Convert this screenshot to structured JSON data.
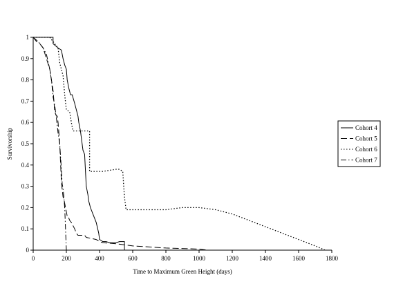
{
  "chart_data": {
    "type": "line",
    "title": "",
    "xlabel": "Time to Maximum Green Height (days)",
    "ylabel": "Survivorship",
    "xlim": [
      0,
      1800
    ],
    "ylim": [
      0,
      1
    ],
    "x_ticks": [
      0,
      200,
      400,
      600,
      800,
      1000,
      1200,
      1400,
      1600,
      1800
    ],
    "y_ticks": [
      0,
      0.1,
      0.2,
      0.3,
      0.4,
      0.5,
      0.6,
      0.7,
      0.8,
      0.9,
      1
    ],
    "grid": false,
    "legend_position": "right",
    "series": [
      {
        "name": "Cohort 4",
        "style": "solid",
        "x": [
          0,
          120,
          120,
          150,
          170,
          180,
          190,
          200,
          205,
          215,
          225,
          235,
          250,
          260,
          270,
          275,
          285,
          295,
          300,
          310,
          320,
          330,
          335,
          345,
          360,
          380,
          395,
          400,
          410,
          420,
          440,
          460,
          480,
          500,
          520,
          550,
          550
        ],
        "y": [
          1,
          1,
          0.97,
          0.95,
          0.94,
          0.9,
          0.87,
          0.85,
          0.8,
          0.76,
          0.73,
          0.73,
          0.69,
          0.66,
          0.63,
          0.6,
          0.56,
          0.5,
          0.47,
          0.45,
          0.3,
          0.26,
          0.23,
          0.2,
          0.17,
          0.13,
          0.08,
          0.05,
          0.045,
          0.04,
          0.04,
          0.035,
          0.035,
          0.035,
          0.04,
          0.04,
          0
        ]
      },
      {
        "name": "Cohort 5",
        "style": "dashed",
        "x": [
          0,
          20,
          40,
          60,
          80,
          100,
          110,
          120,
          130,
          140,
          145,
          150,
          155,
          160,
          170,
          180,
          185,
          190,
          195,
          200,
          205,
          210,
          220,
          230,
          250,
          260,
          270,
          310,
          320,
          380,
          400,
          420,
          500,
          600,
          800,
          1000,
          1050
        ],
        "y": [
          1,
          0.98,
          0.97,
          0.95,
          0.9,
          0.85,
          0.8,
          0.75,
          0.65,
          0.63,
          0.63,
          0.6,
          0.55,
          0.5,
          0.32,
          0.25,
          0.24,
          0.22,
          0.2,
          0.18,
          0.16,
          0.16,
          0.14,
          0.13,
          0.1,
          0.08,
          0.07,
          0.07,
          0.06,
          0.05,
          0.04,
          0.035,
          0.03,
          0.02,
          0.01,
          0.005,
          0
        ]
      },
      {
        "name": "Cohort 6",
        "style": "dotted",
        "x": [
          0,
          100,
          150,
          160,
          180,
          190,
          200,
          220,
          230,
          240,
          245,
          250,
          340,
          340,
          350,
          420,
          500,
          520,
          540,
          550,
          560,
          620,
          700,
          800,
          900,
          1000,
          1100,
          1200,
          1300,
          1400,
          1500,
          1600,
          1700,
          1760
        ],
        "y": [
          1,
          1,
          0.95,
          0.88,
          0.82,
          0.73,
          0.66,
          0.65,
          0.6,
          0.56,
          0.56,
          0.56,
          0.56,
          0.37,
          0.37,
          0.37,
          0.38,
          0.38,
          0.37,
          0.25,
          0.19,
          0.19,
          0.19,
          0.19,
          0.2,
          0.2,
          0.19,
          0.17,
          0.14,
          0.11,
          0.08,
          0.05,
          0.02,
          0
        ]
      },
      {
        "name": "Cohort 7",
        "style": "dashdot",
        "x": [
          0,
          30,
          60,
          80,
          100,
          110,
          120,
          130,
          140,
          150,
          160,
          165,
          170,
          175,
          180,
          185,
          190,
          195,
          200
        ],
        "y": [
          1,
          0.98,
          0.95,
          0.92,
          0.85,
          0.8,
          0.72,
          0.68,
          0.62,
          0.55,
          0.5,
          0.44,
          0.38,
          0.31,
          0.29,
          0.25,
          0.2,
          0.1,
          0
        ]
      }
    ]
  }
}
